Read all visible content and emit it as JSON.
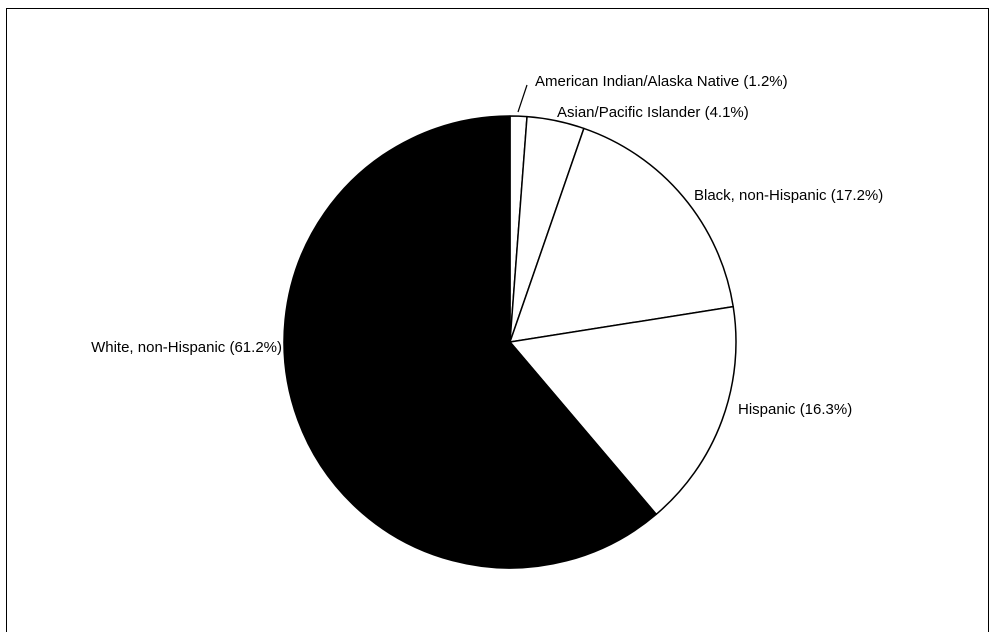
{
  "chart_data": {
    "type": "pie",
    "slices": [
      {
        "label": "American Indian/Alaska Native (1.2%)",
        "value": 1.2,
        "color": "#ffffff"
      },
      {
        "label": "Asian/Pacific Islander (4.1%)",
        "value": 4.1,
        "color": "#ffffff"
      },
      {
        "label": "Black, non-Hispanic (17.2%)",
        "value": 17.2,
        "color": "#ffffff"
      },
      {
        "label": "Hispanic (16.3%)",
        "value": 16.3,
        "color": "#ffffff"
      },
      {
        "label": "White, non-Hispanic (61.2%)",
        "value": 61.2,
        "color": "#000000"
      }
    ],
    "start": "12 o'clock",
    "direction": "clockwise",
    "stroke_color": "#000000"
  }
}
